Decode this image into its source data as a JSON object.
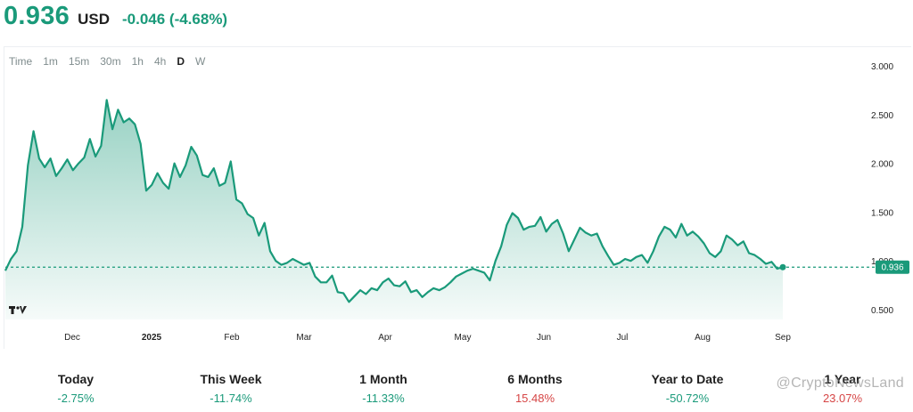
{
  "header": {
    "price": "0.936",
    "currency": "USD",
    "change": "-0.046 (-4.68%)"
  },
  "toolbar": {
    "intervals": [
      "Time",
      "1m",
      "15m",
      "30m",
      "1h",
      "4h",
      "D",
      "W"
    ],
    "active": "D"
  },
  "colors": {
    "accent": "#1a9a7a",
    "negative": "#d64545",
    "line": "#1a9a7a"
  },
  "chart_data": {
    "type": "area",
    "x_ticks": [
      "Dec",
      "2025",
      "Feb",
      "Mar",
      "Apr",
      "May",
      "Jun",
      "Jul",
      "Aug",
      "Sep"
    ],
    "y_ticks": [
      "3.000",
      "2.500",
      "2.000",
      "1.500",
      "1.000",
      "0.500"
    ],
    "last_value_label": "0.936",
    "current_price": 0.936,
    "ylim": [
      0.4,
      3.1
    ],
    "grid": false,
    "series": [
      {
        "values": [
          0.9,
          1.02,
          1.1,
          1.35,
          1.98,
          2.33,
          2.05,
          1.96,
          2.05,
          1.87,
          1.95,
          2.04,
          1.93,
          2.0,
          2.06,
          2.25,
          2.07,
          2.18,
          2.65,
          2.35,
          2.55,
          2.42,
          2.46,
          2.4,
          2.2,
          1.72,
          1.78,
          1.9,
          1.8,
          1.74,
          2.0,
          1.86,
          1.98,
          2.17,
          2.08,
          1.88,
          1.86,
          1.95,
          1.77,
          1.8,
          2.02,
          1.63,
          1.59,
          1.48,
          1.44,
          1.26,
          1.39,
          1.1,
          1.0,
          0.96,
          0.98,
          1.02,
          0.99,
          0.96,
          0.98,
          0.84,
          0.78,
          0.78,
          0.85,
          0.68,
          0.67,
          0.58,
          0.64,
          0.7,
          0.66,
          0.72,
          0.7,
          0.78,
          0.82,
          0.75,
          0.74,
          0.79,
          0.68,
          0.7,
          0.63,
          0.68,
          0.72,
          0.7,
          0.73,
          0.78,
          0.84,
          0.87,
          0.9,
          0.92,
          0.9,
          0.88,
          0.8,
          1.0,
          1.15,
          1.37,
          1.49,
          1.44,
          1.32,
          1.35,
          1.36,
          1.45,
          1.3,
          1.38,
          1.42,
          1.28,
          1.1,
          1.22,
          1.34,
          1.29,
          1.26,
          1.28,
          1.15,
          1.05,
          0.96,
          0.98,
          1.02,
          1.0,
          1.04,
          1.06,
          0.98,
          1.1,
          1.25,
          1.35,
          1.32,
          1.24,
          1.38,
          1.26,
          1.3,
          1.25,
          1.18,
          1.08,
          1.04,
          1.1,
          1.26,
          1.22,
          1.16,
          1.2,
          1.08,
          1.06,
          1.02,
          0.97,
          0.99,
          0.92,
          0.936
        ]
      }
    ]
  },
  "performance": [
    {
      "label": "Today",
      "value": "-2.75%",
      "sign": "pos"
    },
    {
      "label": "This Week",
      "value": "-11.74%",
      "sign": "pos"
    },
    {
      "label": "1 Month",
      "value": "-11.33%",
      "sign": "pos"
    },
    {
      "label": "6 Months",
      "value": "15.48%",
      "sign": "neg"
    },
    {
      "label": "Year to Date",
      "value": "-50.72%",
      "sign": "pos"
    },
    {
      "label": "1 Year",
      "value": "23.07%",
      "sign": "neg"
    }
  ],
  "watermark": "@CryptoNewsLand"
}
